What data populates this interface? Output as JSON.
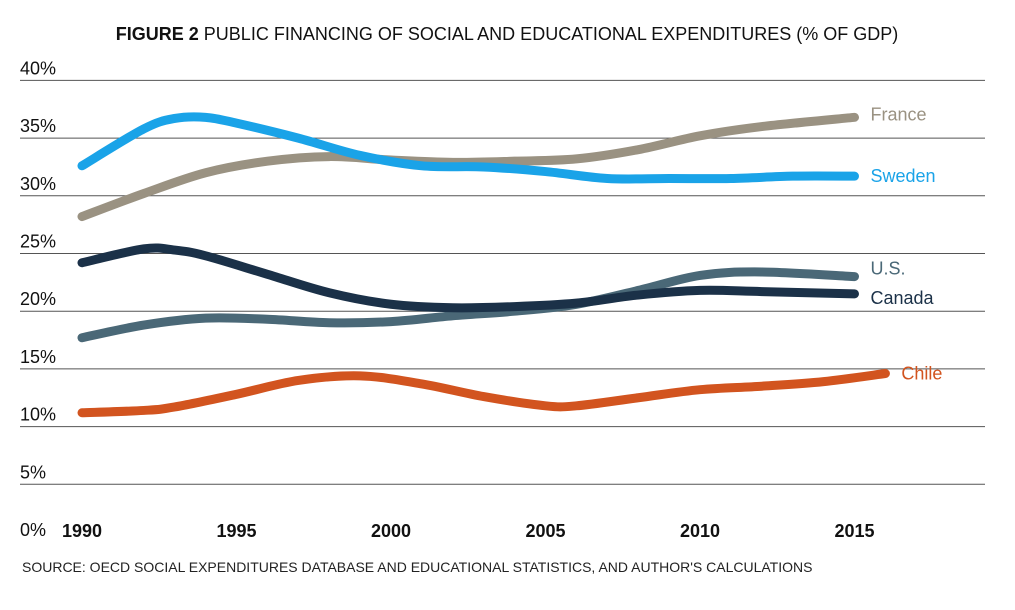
{
  "chart_data": {
    "type": "line",
    "title_bold": "FIGURE 2",
    "title": "PUBLIC FINANCING OF SOCIAL AND EDUCATIONAL EXPENDITURES (% OF GDP)",
    "xlabel": "",
    "ylabel": "",
    "ylim": [
      0,
      40
    ],
    "xlim": [
      1990,
      2018
    ],
    "grid": true,
    "y_ticks": [
      {
        "v": 0,
        "label": "0%"
      },
      {
        "v": 5,
        "label": "5%"
      },
      {
        "v": 10,
        "label": "10%"
      },
      {
        "v": 15,
        "label": "15%"
      },
      {
        "v": 20,
        "label": "20%"
      },
      {
        "v": 25,
        "label": "25%"
      },
      {
        "v": 30,
        "label": "30%"
      },
      {
        "v": 35,
        "label": "35%"
      },
      {
        "v": 40,
        "label": "40%"
      }
    ],
    "x_ticks": [
      {
        "v": 1990,
        "label": "1990"
      },
      {
        "v": 1995,
        "label": "1995"
      },
      {
        "v": 2000,
        "label": "2000"
      },
      {
        "v": 2005,
        "label": "2005"
      },
      {
        "v": 2010,
        "label": "2010"
      },
      {
        "v": 2015,
        "label": "2015"
      }
    ],
    "series": [
      {
        "name": "France",
        "color": "#9a9282",
        "x": [
          1990,
          1992,
          1994,
          1996,
          1998,
          2000,
          2002,
          2004,
          2006,
          2008,
          2010,
          2012,
          2015
        ],
        "y": [
          28.2,
          30.2,
          32.0,
          33.0,
          33.4,
          33.1,
          32.9,
          33.0,
          33.2,
          34.0,
          35.2,
          36.0,
          36.8
        ]
      },
      {
        "name": "Sweden",
        "color": "#1aa3e8",
        "x": [
          1990,
          1992,
          1993,
          1994,
          1995,
          1997,
          1999,
          2001,
          2003,
          2005,
          2007,
          2009,
          2011,
          2013,
          2015
        ],
        "y": [
          32.6,
          35.8,
          36.7,
          36.8,
          36.3,
          35.0,
          33.5,
          32.6,
          32.5,
          32.1,
          31.5,
          31.5,
          31.5,
          31.7,
          31.7
        ]
      },
      {
        "name": "U.S.",
        "color": "#4a6877",
        "x": [
          1990,
          1992,
          1994,
          1996,
          1998,
          2000,
          2002,
          2004,
          2006,
          2008,
          2010,
          2012,
          2015
        ],
        "y": [
          17.7,
          18.8,
          19.4,
          19.3,
          19.0,
          19.1,
          19.6,
          20.0,
          20.6,
          21.8,
          23.1,
          23.4,
          23.0
        ]
      },
      {
        "name": "Canada",
        "color": "#1b3148",
        "x": [
          1990,
          1992,
          1993,
          1994,
          1996,
          1998,
          2000,
          2002,
          2004,
          2006,
          2008,
          2010,
          2012,
          2015
        ],
        "y": [
          24.2,
          25.4,
          25.3,
          24.8,
          23.2,
          21.6,
          20.6,
          20.3,
          20.4,
          20.7,
          21.4,
          21.8,
          21.7,
          21.5
        ]
      },
      {
        "name": "Chile",
        "color": "#d2541f",
        "x": [
          1990,
          1992,
          1993,
          1995,
          1997,
          1999,
          2001,
          2003,
          2005,
          2006,
          2008,
          2010,
          2012,
          2014,
          2016
        ],
        "y": [
          11.2,
          11.4,
          11.7,
          12.8,
          14.0,
          14.4,
          13.7,
          12.6,
          11.8,
          11.8,
          12.5,
          13.2,
          13.5,
          13.9,
          14.6
        ]
      }
    ],
    "source": "SOURCE: OECD SOCIAL EXPENDITURES DATABASE AND EDUCATIONAL STATISTICS, AND AUTHOR'S CALCULATIONS"
  }
}
